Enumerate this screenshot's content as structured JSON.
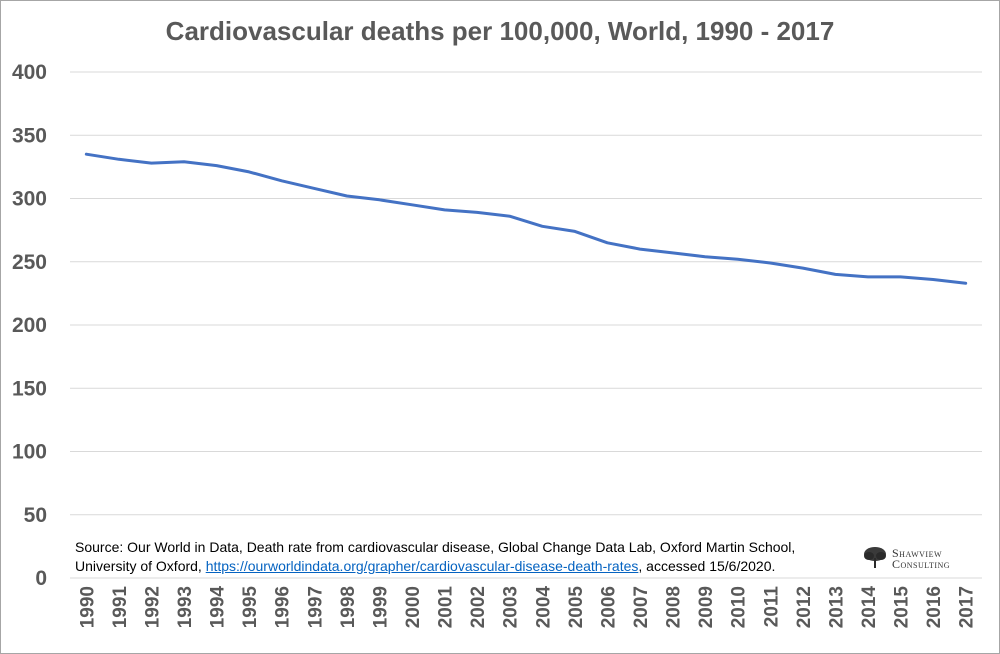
{
  "chart_data": {
    "type": "line",
    "title": "Cardiovascular deaths per 100,000, World, 1990 - 2017",
    "xlabel": "",
    "ylabel": "",
    "ylim": [
      0,
      400
    ],
    "yticks": [
      "0",
      "50",
      "100",
      "150",
      "200",
      "250",
      "300",
      "350",
      "400"
    ],
    "grid": true,
    "categories": [
      "1990",
      "1991",
      "1992",
      "1993",
      "1994",
      "1995",
      "1996",
      "1997",
      "1998",
      "1999",
      "2000",
      "2001",
      "2002",
      "2003",
      "2004",
      "2005",
      "2006",
      "2007",
      "2008",
      "2009",
      "2010",
      "2011",
      "2012",
      "2013",
      "2014",
      "2015",
      "2016",
      "2017"
    ],
    "series": [
      {
        "color": "#4472c4",
        "values": [
          335,
          331,
          328,
          329,
          326,
          321,
          314,
          308,
          302,
          299,
          295,
          291,
          289,
          286,
          278,
          274,
          265,
          260,
          257,
          254,
          252,
          249,
          245,
          240,
          238,
          238,
          236,
          233
        ]
      }
    ]
  },
  "source": {
    "prefix": "Source: Our World in Data, Death rate from cardiovascular disease, Global Change Data Lab, Oxford Martin School, University of Oxford, ",
    "link": "https://ourworldindata.org/grapher/cardiovascular-disease-death-rates",
    "suffix": ", accessed 15/6/2020."
  },
  "logo": {
    "line1": "Shawview",
    "line2": "Consulting"
  },
  "colors": {
    "series": "#4472c4",
    "text": "#595959",
    "grid": "#d9d9d9"
  }
}
